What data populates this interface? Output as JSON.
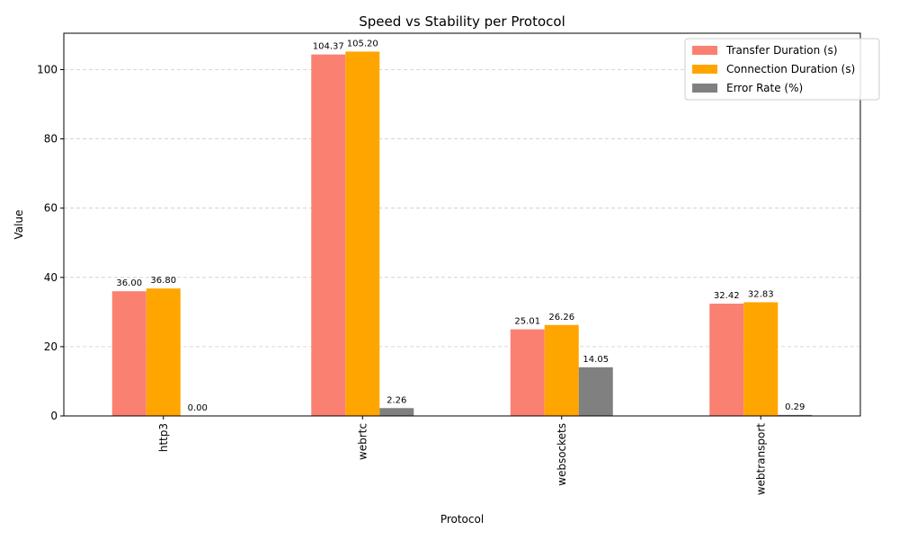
{
  "chart_data": {
    "type": "bar",
    "title": "Speed vs Stability per Protocol",
    "xlabel": "Protocol",
    "ylabel": "Value",
    "categories": [
      "http3",
      "webrtc",
      "websockets",
      "webtransport"
    ],
    "series": [
      {
        "name": "Transfer Duration (s)",
        "color": "#fa8072",
        "values": [
          36.0,
          104.37,
          25.01,
          32.42
        ],
        "labels": [
          "36.00",
          "104.37",
          "25.01",
          "32.42"
        ]
      },
      {
        "name": "Connection Duration (s)",
        "color": "#ffa500",
        "values": [
          36.8,
          105.2,
          26.26,
          32.83
        ],
        "labels": [
          "36.80",
          "105.20",
          "26.26",
          "32.83"
        ]
      },
      {
        "name": "Error Rate (%)",
        "color": "#808080",
        "values": [
          0.0,
          2.26,
          14.05,
          0.29
        ],
        "labels": [
          "0.00",
          "2.26",
          "14.05",
          "0.29"
        ]
      }
    ],
    "ylim": [
      0,
      110.5
    ],
    "yticks": [
      0,
      20,
      40,
      60,
      80,
      100
    ],
    "ytick_labels": [
      "0",
      "20",
      "40",
      "60",
      "80",
      "100"
    ],
    "grid": "y-dashed",
    "legend_position": "top-right",
    "xtick_rotation": "vertical"
  }
}
